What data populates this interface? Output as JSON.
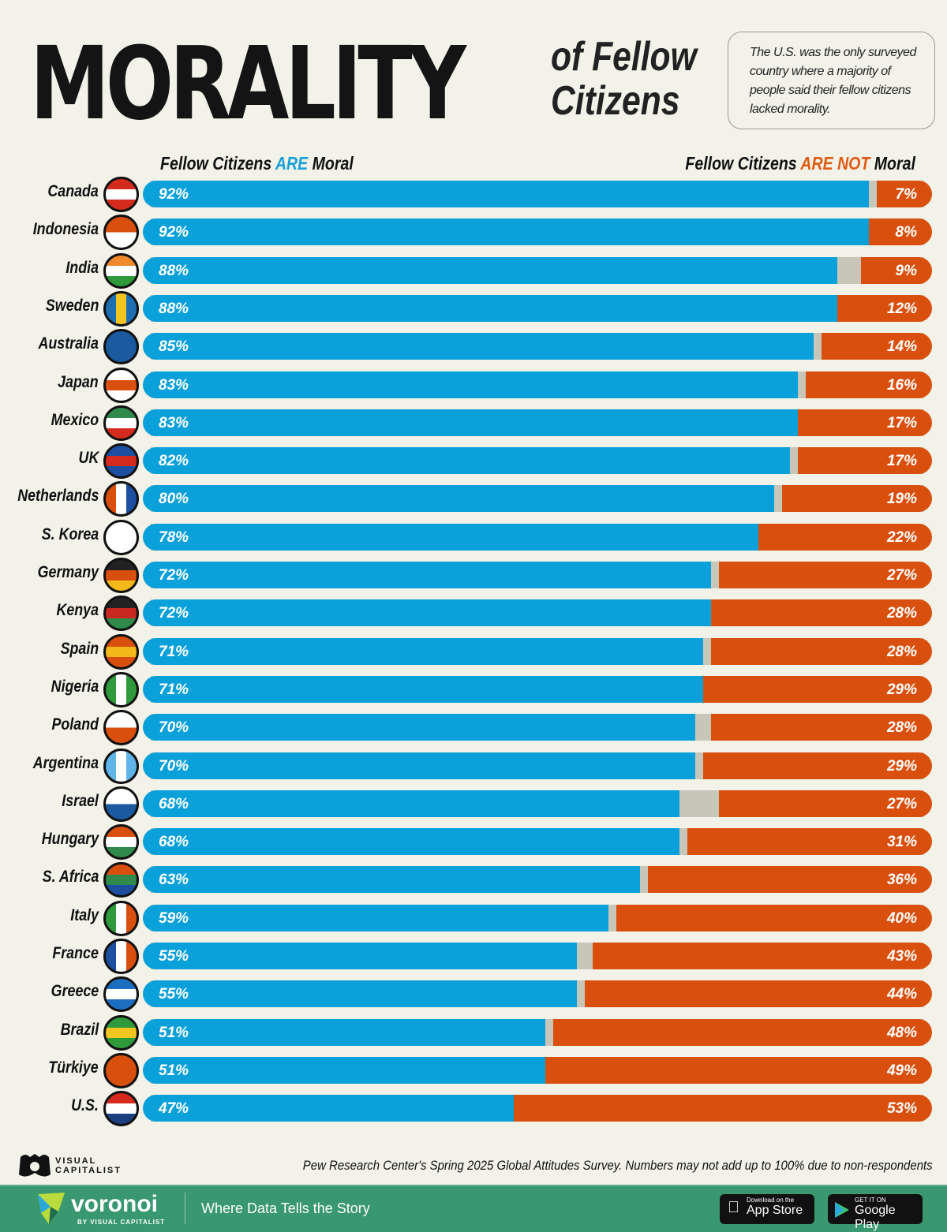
{
  "title": {
    "main": "MORALITY",
    "sub_line1": "of Fellow",
    "sub_line2": "Citizens"
  },
  "note": "The U.S. was the only surveyed country where a majority of people said their fellow citizens lacked morality.",
  "colors": {
    "moral": "#0aa0d9",
    "not_moral": "#d9500e",
    "gap": "#c8c6b8",
    "background": "#f3f2e8"
  },
  "chart_data": {
    "type": "bar",
    "orientation": "horizontal-stacked",
    "legend": {
      "left": {
        "pre": "Fellow Citizens ",
        "em": "ARE",
        "post": " Moral"
      },
      "right": {
        "pre": "Fellow Citizens ",
        "em": "ARE NOT",
        "post": " Moral"
      }
    },
    "categories": [
      "Canada",
      "Indonesia",
      "India",
      "Sweden",
      "Australia",
      "Japan",
      "Mexico",
      "UK",
      "Netherlands",
      "S. Korea",
      "Germany",
      "Kenya",
      "Spain",
      "Nigeria",
      "Poland",
      "Argentina",
      "Israel",
      "Hungary",
      "S. Africa",
      "Italy",
      "France",
      "Greece",
      "Brazil",
      "Türkiye",
      "U.S."
    ],
    "series": [
      {
        "name": "Fellow Citizens ARE Moral",
        "values": [
          92,
          92,
          88,
          88,
          85,
          83,
          83,
          82,
          80,
          78,
          72,
          72,
          71,
          71,
          70,
          70,
          68,
          68,
          63,
          59,
          55,
          55,
          51,
          51,
          47
        ]
      },
      {
        "name": "Fellow Citizens ARE NOT Moral",
        "values": [
          7,
          8,
          9,
          12,
          14,
          16,
          17,
          17,
          19,
          22,
          27,
          28,
          28,
          29,
          28,
          29,
          27,
          31,
          36,
          40,
          43,
          44,
          48,
          49,
          53
        ]
      }
    ],
    "unit": "%",
    "xlim": [
      0,
      100
    ]
  },
  "flags": [
    [
      "#d52b1e",
      "#fff",
      "#d52b1e"
    ],
    [
      "#d9500e",
      "#fff"
    ],
    [
      "#f08a2c",
      "#fff",
      "#2f9a3c"
    ],
    [
      "#1d6fb2",
      "#f3c521",
      "#1d6fb2"
    ],
    [
      "#1c5aa0",
      "#1c5aa0"
    ],
    [
      "#fff",
      "#d9500e",
      "#fff"
    ],
    [
      "#2f8a4c",
      "#fff",
      "#d52b1e"
    ],
    [
      "#1c4fa0",
      "#d52b1e",
      "#1c4fa0"
    ],
    [
      "#d9500e",
      "#fff",
      "#1c4fa0"
    ],
    [
      "#fff",
      "#fff"
    ],
    [
      "#222",
      "#d9500e",
      "#f3b81a"
    ],
    [
      "#222",
      "#c8281f",
      "#2f8a4c"
    ],
    [
      "#d9500e",
      "#f3b81a",
      "#d9500e"
    ],
    [
      "#2f9a3c",
      "#fff",
      "#2f9a3c"
    ],
    [
      "#fff",
      "#d9500e"
    ],
    [
      "#5fb5e8",
      "#fff",
      "#5fb5e8"
    ],
    [
      "#fff",
      "#1c5aa0"
    ],
    [
      "#d9500e",
      "#fff",
      "#2f8a4c"
    ],
    [
      "#d9500e",
      "#2f8a4c",
      "#1c4fa0"
    ],
    [
      "#2f9a3c",
      "#fff",
      "#d9500e"
    ],
    [
      "#1c4fa0",
      "#fff",
      "#d9500e"
    ],
    [
      "#1c6fc0",
      "#fff",
      "#1c6fc0"
    ],
    [
      "#2f9a3c",
      "#f3c521",
      "#2f9a3c"
    ],
    [
      "#d9500e",
      "#d9500e"
    ],
    [
      "#d52b1e",
      "#fff",
      "#1c3f80"
    ]
  ],
  "source": "Pew Research Center's Spring 2025 Global Attitudes Survey. Numbers may not add up to 100% due to non-respondents",
  "footer": {
    "brand": "voronoi",
    "brand_by": "BY VISUAL CAPITALIST",
    "tagline": "Where Data Tells the Story",
    "app_store": {
      "small": "Download on the",
      "big": "App Store"
    },
    "google_play": {
      "small": "GET IT ON",
      "big": "Google Play"
    }
  },
  "vc_logo": "VISUAL CAPITALIST"
}
